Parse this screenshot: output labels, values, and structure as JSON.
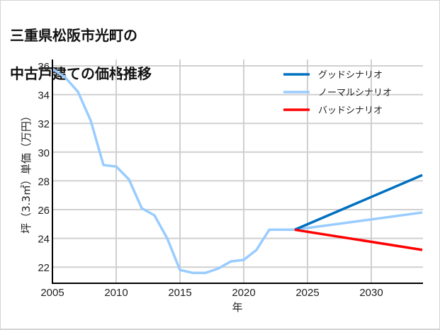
{
  "chart_data": {
    "type": "line",
    "title": "三重県松阪市光町の\n中古戸建ての価格推移",
    "xlabel": "年",
    "ylabel": "坪（3.3㎡）単価（万円）",
    "xlim": [
      2005,
      2034
    ],
    "ylim": [
      20.9,
      36.4
    ],
    "xticks": [
      2005,
      2010,
      2015,
      2020,
      2025,
      2030
    ],
    "yticks": [
      22,
      24,
      26,
      28,
      30,
      32,
      34,
      36
    ],
    "grid": true,
    "legend_position": "upper right",
    "series": [
      {
        "name": "グッドシナリオ",
        "color": "#0070c0",
        "x": [
          2024,
          2034
        ],
        "values": [
          24.6,
          28.4
        ]
      },
      {
        "name": "ノーマルシナリオ",
        "color": "#99ccff",
        "x": [
          2005,
          2006,
          2007,
          2008,
          2009,
          2010,
          2011,
          2012,
          2013,
          2014,
          2015,
          2016,
          2017,
          2018,
          2019,
          2020,
          2021,
          2022,
          2023,
          2024,
          2034
        ],
        "values": [
          35.8,
          35.2,
          34.2,
          32.2,
          29.1,
          29.0,
          28.1,
          26.1,
          25.6,
          24.0,
          21.8,
          21.6,
          21.6,
          21.9,
          22.4,
          22.5,
          23.2,
          24.6,
          24.6,
          24.6,
          25.8
        ]
      },
      {
        "name": "バッドシナリオ",
        "color": "#ff0000",
        "x": [
          2024,
          2034
        ],
        "values": [
          24.6,
          23.2
        ]
      }
    ]
  },
  "title": {
    "line1": "三重県松阪市光町の",
    "line2": "中古戸建ての価格推移"
  },
  "axes": {
    "xlabel": "年",
    "ylabel": "坪（3.3㎡）単価（万円）",
    "xtick_labels": [
      "2005",
      "2010",
      "2015",
      "2020",
      "2025",
      "2030"
    ],
    "ytick_labels": [
      "22",
      "24",
      "26",
      "28",
      "30",
      "32",
      "34",
      "36"
    ]
  },
  "legend": {
    "items": [
      {
        "label": "グッドシナリオ",
        "color": "#0070c0"
      },
      {
        "label": "ノーマルシナリオ",
        "color": "#99ccff"
      },
      {
        "label": "バッドシナリオ",
        "color": "#ff0000"
      }
    ]
  },
  "colors": {
    "grid": "#d0d0d0",
    "axis": "#000000"
  }
}
